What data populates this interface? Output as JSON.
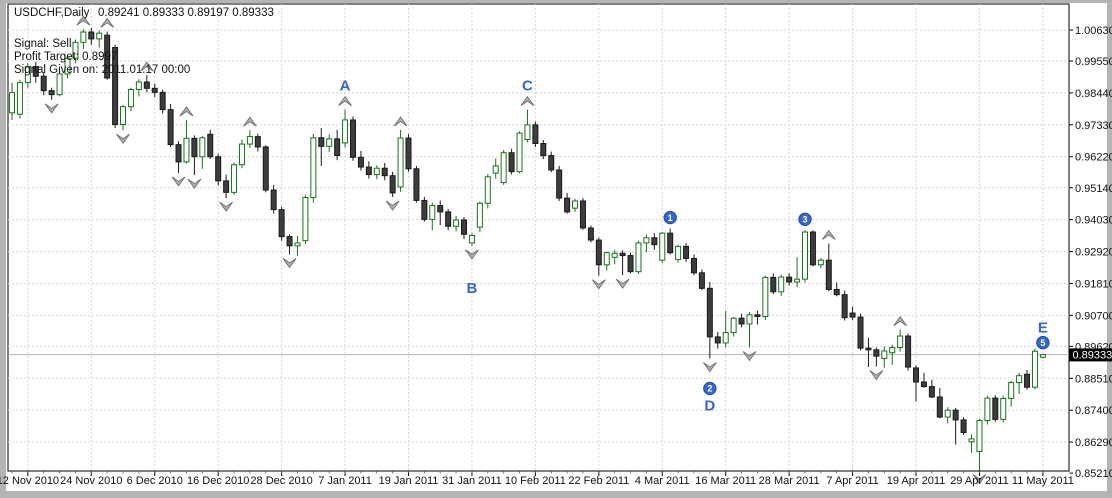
{
  "chart_title": {
    "symbol_period": "USDCHF,Daily",
    "ohlc": "0.89241 0.89333 0.89197 0.89333"
  },
  "signal_panel": {
    "signal": "Signal: Sell",
    "profit_target": "Profit Target: 0.8997",
    "given_on": "Signal Given on: 2011.01.17 00:00"
  },
  "current_price_label": "0.89333",
  "colors": {
    "bull_outline": "#157515",
    "bear_fill": "#3d3d3d",
    "bear_outline": "#1a1a1a",
    "grid": "#d6d6d6",
    "wave_blue": "#3565cf",
    "fractal_fill": "#b3b3b3",
    "fractal_edge": "#6e6e6e",
    "price_line": "#b4b4b4",
    "badge_bg": "#000000",
    "badge_fg": "#ffffff",
    "frame": "#b4b4b4",
    "plot_bg": "#ffffff",
    "border": "#000000"
  },
  "chart_data": {
    "type": "candlestick",
    "symbol": "USDCHF",
    "timeframe": "Daily",
    "title": "USDCHF,Daily",
    "last_quote": {
      "open": 0.89241,
      "high": 0.89333,
      "low": 0.89197,
      "close": 0.89333
    },
    "current_price": 0.89333,
    "ylim": [
      0.8521,
      1.0063
    ],
    "grid": true,
    "y_axis_ticks": [
      "1.00630",
      "0.99550",
      "0.98440",
      "0.97330",
      "0.96220",
      "0.95140",
      "0.94030",
      "0.92920",
      "0.91810",
      "0.90700",
      "0.89620",
      "0.88510",
      "0.87400",
      "0.86290",
      "0.85210"
    ],
    "x_axis_ticks": [
      {
        "label": "12 Nov 2010",
        "bar": 2
      },
      {
        "label": "24 Nov 2010",
        "bar": 10
      },
      {
        "label": "6 Dec 2010",
        "bar": 18
      },
      {
        "label": "16 Dec 2010",
        "bar": 26
      },
      {
        "label": "28 Dec 2010",
        "bar": 34
      },
      {
        "label": "7 Jan 2011",
        "bar": 42
      },
      {
        "label": "19 Jan 2011",
        "bar": 50
      },
      {
        "label": "31 Jan 2011",
        "bar": 58
      },
      {
        "label": "10 Feb 2011",
        "bar": 66
      },
      {
        "label": "22 Feb 2011",
        "bar": 74
      },
      {
        "label": "4 Mar 2011",
        "bar": 82
      },
      {
        "label": "16 Mar 2011",
        "bar": 90
      },
      {
        "label": "28 Mar 2011",
        "bar": 98
      },
      {
        "label": "7 Apr 2011",
        "bar": 106
      },
      {
        "label": "19 Apr 2011",
        "bar": 114
      },
      {
        "label": "29 Apr 2011",
        "bar": 122
      },
      {
        "label": "11 May 2011",
        "bar": 130
      }
    ],
    "candles": [
      [
        0.9775,
        0.988,
        0.975,
        0.9845
      ],
      [
        0.977,
        0.989,
        0.9755,
        0.988
      ],
      [
        0.988,
        0.9948,
        0.9862,
        0.9936
      ],
      [
        0.9936,
        0.9952,
        0.988,
        0.9902
      ],
      [
        0.9902,
        0.9916,
        0.9836,
        0.9852
      ],
      [
        0.9852,
        0.9862,
        0.982,
        0.9838
      ],
      [
        0.9838,
        0.992,
        0.9832,
        0.991
      ],
      [
        0.991,
        0.9975,
        0.9895,
        0.9965
      ],
      [
        0.9965,
        1.003,
        0.9948,
        1.002
      ],
      [
        1.002,
        1.0066,
        0.9996,
        1.0056
      ],
      [
        1.0056,
        1.007,
        1.0012,
        1.0032
      ],
      [
        1.0032,
        1.0062,
        1.0002,
        1.0052
      ],
      [
        1.0045,
        1.0058,
        0.989,
        0.9896
      ],
      [
        1.0002,
        1.0012,
        0.9722,
        0.9734
      ],
      [
        0.9734,
        0.9802,
        0.9714,
        0.9796
      ],
      [
        0.9796,
        0.9862,
        0.978,
        0.9856
      ],
      [
        0.9856,
        0.9892,
        0.9832,
        0.9882
      ],
      [
        0.9882,
        0.9906,
        0.9846,
        0.986
      ],
      [
        0.986,
        0.9876,
        0.983,
        0.9846
      ],
      [
        0.9846,
        0.9856,
        0.9772,
        0.9786
      ],
      [
        0.9786,
        0.9806,
        0.9656,
        0.9664
      ],
      [
        0.9664,
        0.9676,
        0.9566,
        0.9604
      ],
      [
        0.9604,
        0.975,
        0.9598,
        0.9686
      ],
      [
        0.9686,
        0.9696,
        0.9558,
        0.9622
      ],
      [
        0.9622,
        0.9694,
        0.958,
        0.9688
      ],
      [
        0.97,
        0.9716,
        0.9614,
        0.9622
      ],
      [
        0.9622,
        0.9632,
        0.9522,
        0.9538
      ],
      [
        0.9538,
        0.956,
        0.9478,
        0.9498
      ],
      [
        0.9498,
        0.9602,
        0.949,
        0.9594
      ],
      [
        0.9594,
        0.9682,
        0.9582,
        0.9666
      ],
      [
        0.9666,
        0.9714,
        0.9652,
        0.9692
      ],
      [
        0.9692,
        0.9702,
        0.964,
        0.9656
      ],
      [
        0.9656,
        0.9662,
        0.9498,
        0.9506
      ],
      [
        0.9506,
        0.9524,
        0.9424,
        0.9438
      ],
      [
        0.9438,
        0.9448,
        0.933,
        0.9344
      ],
      [
        0.9344,
        0.9352,
        0.9282,
        0.9312
      ],
      [
        0.9312,
        0.9346,
        0.9276,
        0.9322
      ],
      [
        0.933,
        0.949,
        0.9318,
        0.948
      ],
      [
        0.948,
        0.9702,
        0.9462,
        0.9688
      ],
      [
        0.9688,
        0.9722,
        0.959,
        0.9658
      ],
      [
        0.9658,
        0.97,
        0.9638,
        0.9684
      ],
      [
        0.9684,
        0.9716,
        0.961,
        0.9626
      ],
      [
        0.967,
        0.9786,
        0.9654,
        0.975
      ],
      [
        0.975,
        0.9762,
        0.9608,
        0.962
      ],
      [
        0.962,
        0.9642,
        0.9574,
        0.9586
      ],
      [
        0.9586,
        0.9606,
        0.9546,
        0.956
      ],
      [
        0.956,
        0.9592,
        0.9544,
        0.9582
      ],
      [
        0.9582,
        0.96,
        0.954,
        0.9556
      ],
      [
        0.9556,
        0.957,
        0.9482,
        0.9496
      ],
      [
        0.9517,
        0.9715,
        0.95,
        0.9687
      ],
      [
        0.9687,
        0.97,
        0.957,
        0.958
      ],
      [
        0.958,
        0.959,
        0.9462,
        0.947
      ],
      [
        0.947,
        0.9482,
        0.9396,
        0.9404
      ],
      [
        0.9404,
        0.9462,
        0.9366,
        0.9452
      ],
      [
        0.9452,
        0.947,
        0.9384,
        0.943
      ],
      [
        0.943,
        0.944,
        0.9366,
        0.938
      ],
      [
        0.938,
        0.9416,
        0.9362,
        0.9402
      ],
      [
        0.9402,
        0.9412,
        0.9336,
        0.9352
      ],
      [
        0.9322,
        0.9356,
        0.9312,
        0.9348
      ],
      [
        0.9377,
        0.9466,
        0.936,
        0.946
      ],
      [
        0.946,
        0.9562,
        0.9442,
        0.9552
      ],
      [
        0.9565,
        0.9616,
        0.9546,
        0.959
      ],
      [
        0.9532,
        0.9646,
        0.9524,
        0.9636
      ],
      [
        0.9636,
        0.965,
        0.956,
        0.957
      ],
      [
        0.957,
        0.971,
        0.9564,
        0.9704
      ],
      [
        0.9682,
        0.9786,
        0.9672,
        0.9733
      ],
      [
        0.9733,
        0.9744,
        0.9656,
        0.9668
      ],
      [
        0.9668,
        0.968,
        0.9614,
        0.9626
      ],
      [
        0.9626,
        0.964,
        0.9568,
        0.9576
      ],
      [
        0.9576,
        0.959,
        0.9468,
        0.9478
      ],
      [
        0.9478,
        0.9496,
        0.9424,
        0.943
      ],
      [
        0.9443,
        0.9476,
        0.943,
        0.9468
      ],
      [
        0.9468,
        0.9478,
        0.9368,
        0.9374
      ],
      [
        0.9374,
        0.9382,
        0.9324,
        0.9332
      ],
      [
        0.9332,
        0.934,
        0.9208,
        0.9246
      ],
      [
        0.9246,
        0.9292,
        0.9226,
        0.9288
      ],
      [
        0.9272,
        0.9298,
        0.9248,
        0.9286
      ],
      [
        0.9286,
        0.9296,
        0.921,
        0.9278
      ],
      [
        0.9278,
        0.9288,
        0.9216,
        0.9222
      ],
      [
        0.9222,
        0.933,
        0.9214,
        0.9322
      ],
      [
        0.9322,
        0.9352,
        0.929,
        0.934
      ],
      [
        0.934,
        0.9356,
        0.9298,
        0.9316
      ],
      [
        0.9262,
        0.936,
        0.9252,
        0.9356
      ],
      [
        0.9356,
        0.9372,
        0.9282,
        0.9288
      ],
      [
        0.9264,
        0.9316,
        0.9254,
        0.931
      ],
      [
        0.931,
        0.9322,
        0.9256,
        0.9268
      ],
      [
        0.9268,
        0.9282,
        0.921,
        0.9218
      ],
      [
        0.9218,
        0.923,
        0.9158,
        0.9164
      ],
      [
        0.9164,
        0.9186,
        0.892,
        0.8995
      ],
      [
        0.8995,
        0.9012,
        0.8954,
        0.8974
      ],
      [
        0.8974,
        0.9086,
        0.8958,
        0.901
      ],
      [
        0.901,
        0.9064,
        0.8996,
        0.906
      ],
      [
        0.906,
        0.9076,
        0.9028,
        0.904
      ],
      [
        0.904,
        0.9082,
        0.8958,
        0.9072
      ],
      [
        0.9072,
        0.9086,
        0.9038,
        0.9066
      ],
      [
        0.9066,
        0.9208,
        0.9054,
        0.9202
      ],
      [
        0.9202,
        0.9216,
        0.9144,
        0.9152
      ],
      [
        0.9152,
        0.9212,
        0.9138,
        0.9203
      ],
      [
        0.9203,
        0.9216,
        0.9174,
        0.9186
      ],
      [
        0.9186,
        0.9272,
        0.9168,
        0.9196
      ],
      [
        0.9196,
        0.9366,
        0.9184,
        0.936
      ],
      [
        0.936,
        0.9366,
        0.924,
        0.9246
      ],
      [
        0.9246,
        0.927,
        0.9234,
        0.9262
      ],
      [
        0.9262,
        0.932,
        0.9154,
        0.916
      ],
      [
        0.916,
        0.9184,
        0.9136,
        0.9142
      ],
      [
        0.9142,
        0.9156,
        0.9052,
        0.9062
      ],
      [
        0.9078,
        0.91,
        0.9054,
        0.9064
      ],
      [
        0.9064,
        0.9076,
        0.8948,
        0.8956
      ],
      [
        0.8956,
        0.8992,
        0.889,
        0.895
      ],
      [
        0.895,
        0.8958,
        0.8892,
        0.8928
      ],
      [
        0.892,
        0.8962,
        0.8888,
        0.8946
      ],
      [
        0.894,
        0.8968,
        0.8898,
        0.8958
      ],
      [
        0.8958,
        0.902,
        0.8944,
        0.8998
      ],
      [
        0.8998,
        0.9006,
        0.8878,
        0.889
      ],
      [
        0.8887,
        0.8896,
        0.877,
        0.8838
      ],
      [
        0.8838,
        0.887,
        0.8818,
        0.8822
      ],
      [
        0.8822,
        0.8846,
        0.8782,
        0.8786
      ],
      [
        0.8786,
        0.8818,
        0.8712,
        0.8716
      ],
      [
        0.8716,
        0.875,
        0.8694,
        0.874
      ],
      [
        0.874,
        0.8748,
        0.862,
        0.8706
      ],
      [
        0.8706,
        0.8716,
        0.8654,
        0.8662
      ],
      [
        0.863,
        0.8656,
        0.8592,
        0.864
      ],
      [
        0.8596,
        0.871,
        0.853,
        0.8704
      ],
      [
        0.8704,
        0.879,
        0.869,
        0.8782
      ],
      [
        0.8782,
        0.8792,
        0.87,
        0.8708
      ],
      [
        0.8708,
        0.879,
        0.8698,
        0.8781
      ],
      [
        0.8781,
        0.8842,
        0.8752,
        0.8836
      ],
      [
        0.8836,
        0.887,
        0.8796,
        0.886
      ],
      [
        0.8865,
        0.888,
        0.8812,
        0.882
      ],
      [
        0.882,
        0.8955,
        0.8812,
        0.8945
      ],
      [
        0.89241,
        0.89333,
        0.89197,
        0.89333
      ]
    ],
    "fractal_up_bars": [
      9,
      12,
      17,
      22,
      30,
      42,
      49,
      65,
      103,
      112
    ],
    "fractal_down_bars": [
      5,
      14,
      21,
      23,
      27,
      35,
      48,
      58,
      74,
      77,
      88,
      93,
      109,
      122
    ],
    "wave_markers": [
      {
        "text": "A",
        "bar": 42,
        "side": "above",
        "offset": 24,
        "kind": "letter"
      },
      {
        "text": "B",
        "bar": 58,
        "side": "below",
        "offset": 42,
        "kind": "letter"
      },
      {
        "text": "C",
        "bar": 65,
        "side": "above",
        "offset": 24,
        "kind": "letter"
      },
      {
        "text": "D",
        "bar": 88,
        "side": "below",
        "offset": 47,
        "kind": "letter"
      },
      {
        "text": "E",
        "bar": 130,
        "side": "above",
        "offset": 27,
        "kind": "letter"
      },
      {
        "text": "1",
        "bar": 83,
        "side": "above",
        "offset": 11,
        "kind": "badge"
      },
      {
        "text": "2",
        "bar": 88,
        "side": "below",
        "offset": 30,
        "kind": "badge"
      },
      {
        "text": "3",
        "bar": 100,
        "side": "above",
        "offset": 11,
        "kind": "badge"
      },
      {
        "text": "5",
        "bar": 130,
        "side": "above",
        "offset": 12,
        "kind": "badge"
      }
    ]
  }
}
